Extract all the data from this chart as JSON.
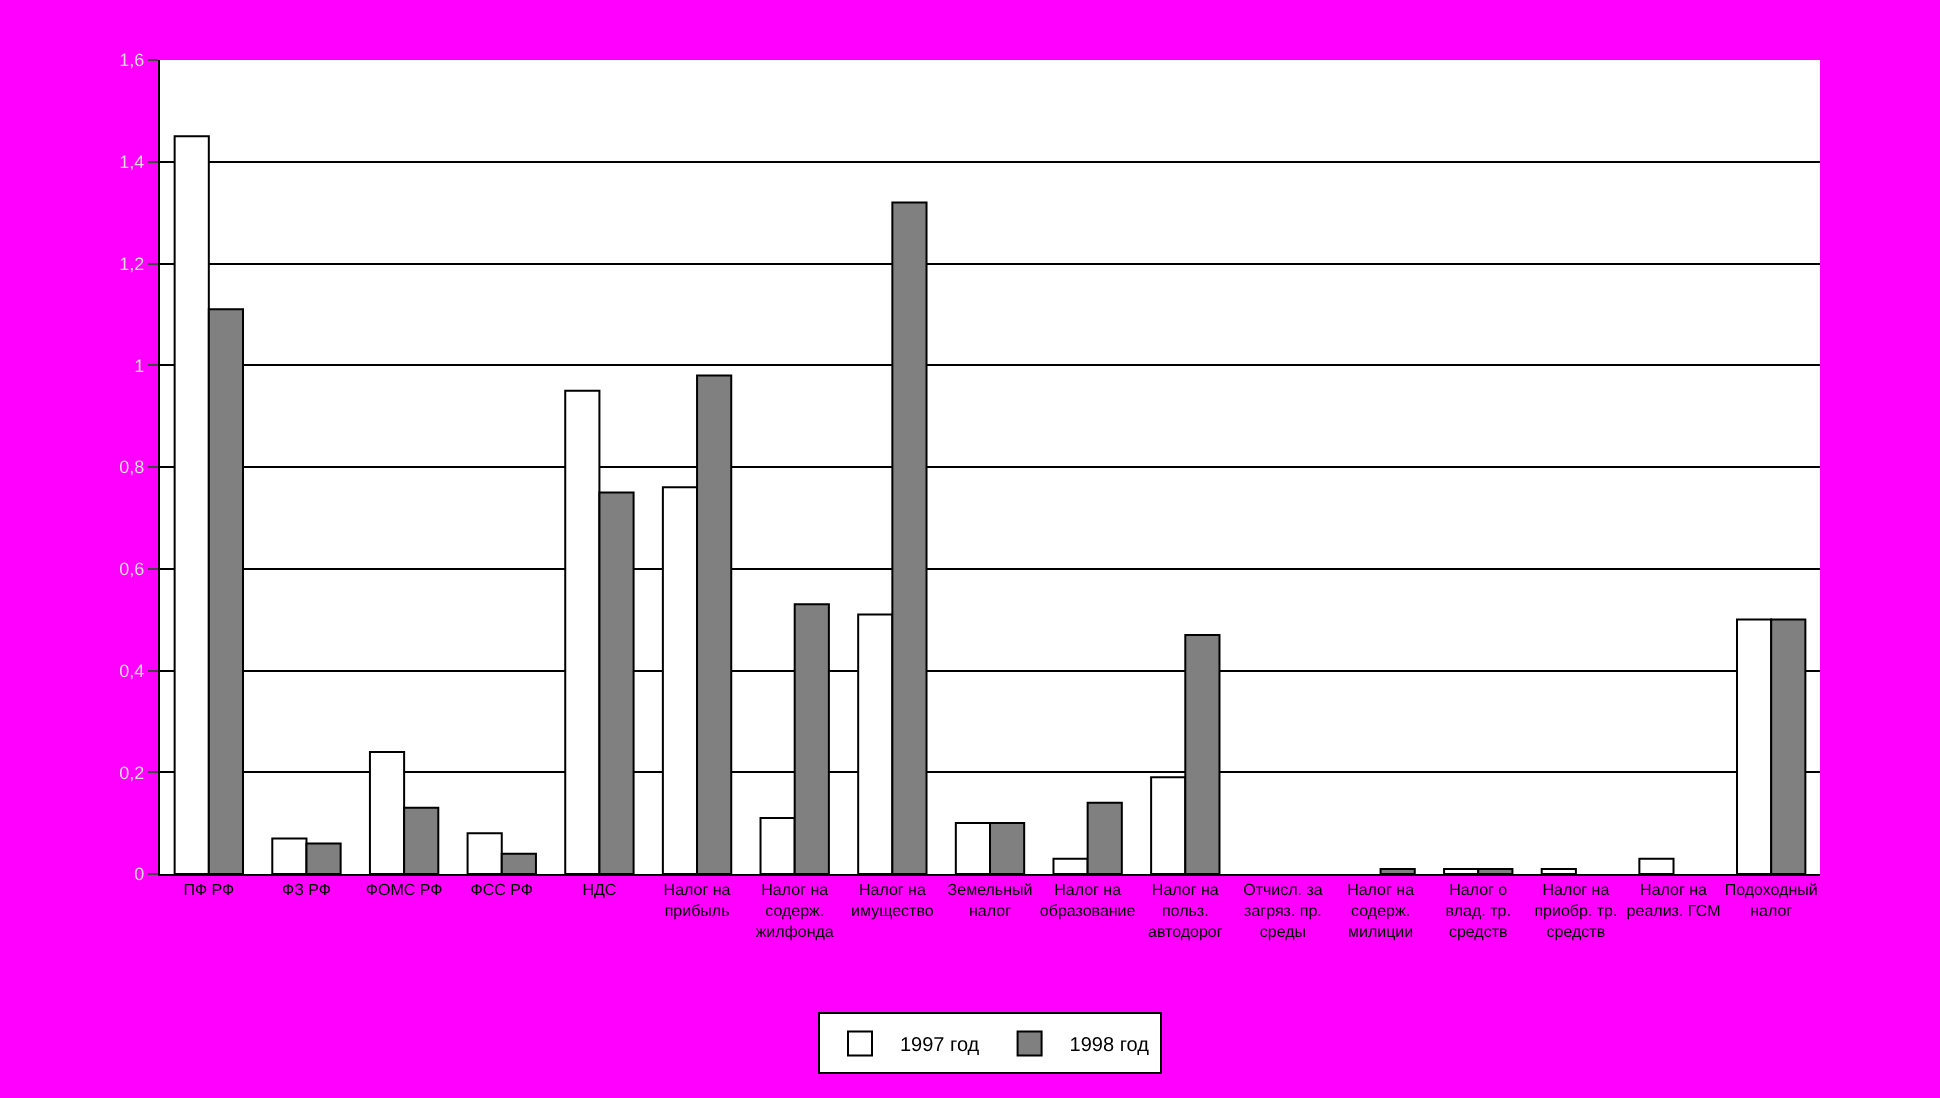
{
  "chart_data": {
    "type": "bar",
    "categories": [
      "ПФ РФ",
      "ФЗ РФ",
      "ФОМС РФ",
      "ФСС РФ",
      "НДС",
      "Налог на прибыль",
      "Налог на содерж. жилфонда",
      "Налог на имущество",
      "Земельный налог",
      "Налог на образование",
      "Налог на польз. автодорог",
      "Отчисл. за загряз. пр. среды",
      "Налог на содерж. милиции",
      "Налог о влад. тр. средств",
      "Налог на приобр. тр. средств",
      "Налог на реализ. ГСМ",
      "Подоходный налог"
    ],
    "series": [
      {
        "name": "1997 год",
        "color": "#ffffff",
        "values": [
          1.45,
          0.07,
          0.24,
          0.08,
          0.95,
          0.76,
          0.11,
          0.51,
          0.1,
          0.03,
          0.19,
          0,
          0,
          0.01,
          0.01,
          0.03,
          0.5
        ]
      },
      {
        "name": "1998 год",
        "color": "#808080",
        "values": [
          1.11,
          0.06,
          0.13,
          0.04,
          0.75,
          0.98,
          0.53,
          1.32,
          0.1,
          0.14,
          0.47,
          0,
          0.01,
          0.01,
          0,
          0,
          0.5
        ]
      }
    ],
    "ylim": [
      0,
      1.6
    ],
    "yticks": [
      0,
      {
        "value": 0.2,
        "label": "0,2"
      },
      {
        "value": 0.4,
        "label": "0,4"
      },
      {
        "value": 0.6,
        "label": "0,6"
      },
      {
        "value": 0.8,
        "label": "0,8"
      },
      1,
      {
        "value": 1.2,
        "label": "1,2"
      },
      {
        "value": 1.4,
        "label": "1,4"
      },
      {
        "value": 1.6,
        "label": "1,6"
      }
    ],
    "grid": "y",
    "legend": "bottom"
  }
}
